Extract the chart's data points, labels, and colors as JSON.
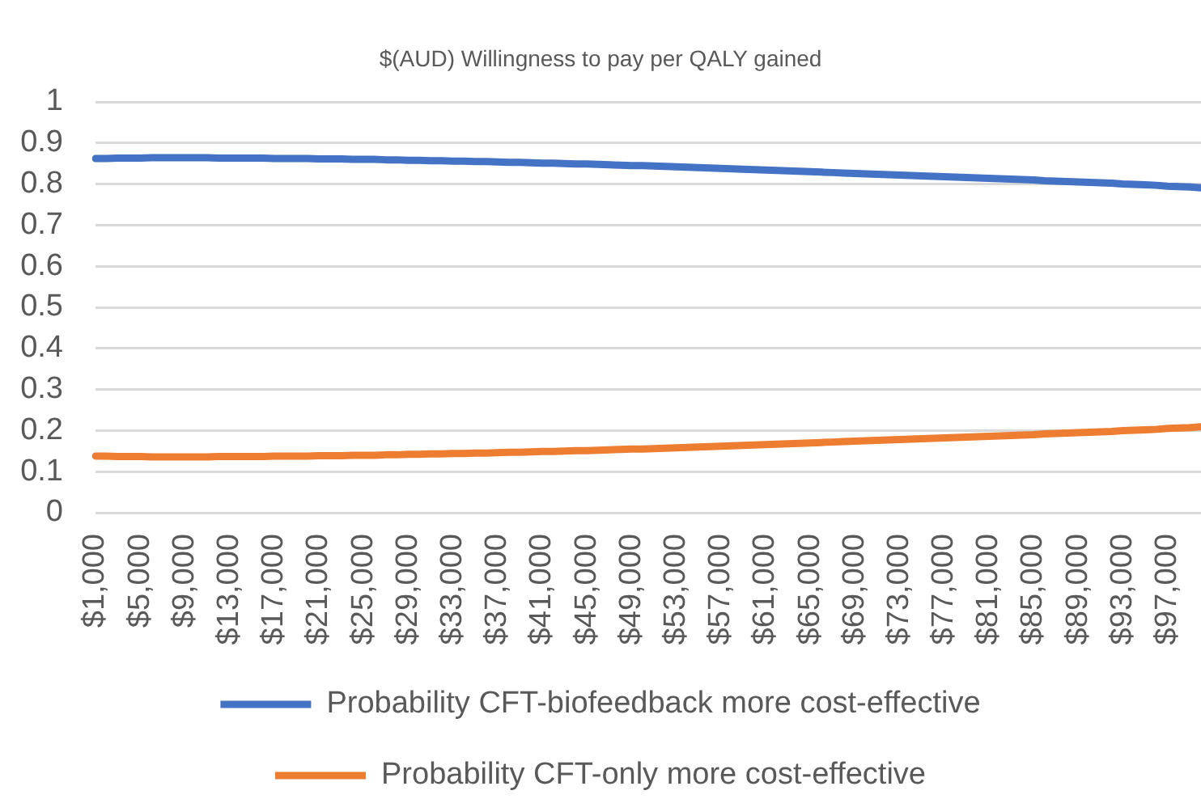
{
  "chart_data": {
    "type": "line",
    "title": "$(AUD) Willingness to pay per QALY gained",
    "categories": [
      "$1,000",
      null,
      null,
      null,
      "$5,000",
      null,
      null,
      null,
      "$9,000",
      null,
      null,
      null,
      "$13,000",
      null,
      null,
      null,
      "$17,000",
      null,
      null,
      null,
      "$21,000",
      null,
      null,
      null,
      "$25,000",
      null,
      null,
      null,
      "$29,000",
      null,
      null,
      null,
      "$33,000",
      null,
      null,
      null,
      "$37,000",
      null,
      null,
      null,
      "$41,000",
      null,
      null,
      null,
      "$45,000",
      null,
      null,
      null,
      "$49,000",
      null,
      null,
      null,
      "$53,000",
      null,
      null,
      null,
      "$57,000",
      null,
      null,
      null,
      "$61,000",
      null,
      null,
      null,
      "$65,000",
      null,
      null,
      null,
      "$69,000",
      null,
      null,
      null,
      "$73,000",
      null,
      null,
      null,
      "$77,000",
      null,
      null,
      null,
      "$81,000",
      null,
      null,
      null,
      "$85,000",
      null,
      null,
      null,
      "$89,000",
      null,
      null,
      null,
      "$93,000",
      null,
      null,
      null,
      "$97,000",
      null,
      null,
      null
    ],
    "series": [
      {
        "name": "Probability CFT-biofeedback more cost-effective",
        "color": "#4472c4",
        "values": [
          0.862,
          0.862,
          0.863,
          0.863,
          0.863,
          0.864,
          0.864,
          0.864,
          0.864,
          0.864,
          0.864,
          0.863,
          0.863,
          0.863,
          0.863,
          0.863,
          0.862,
          0.862,
          0.862,
          0.862,
          0.861,
          0.861,
          0.861,
          0.86,
          0.86,
          0.86,
          0.859,
          0.859,
          0.858,
          0.858,
          0.857,
          0.857,
          0.856,
          0.856,
          0.855,
          0.855,
          0.854,
          0.853,
          0.853,
          0.852,
          0.851,
          0.851,
          0.85,
          0.849,
          0.849,
          0.848,
          0.847,
          0.846,
          0.845,
          0.845,
          0.844,
          0.843,
          0.842,
          0.841,
          0.84,
          0.839,
          0.838,
          0.837,
          0.836,
          0.835,
          0.834,
          0.833,
          0.832,
          0.831,
          0.83,
          0.829,
          0.828,
          0.827,
          0.826,
          0.825,
          0.824,
          0.823,
          0.822,
          0.821,
          0.82,
          0.819,
          0.818,
          0.817,
          0.816,
          0.815,
          0.814,
          0.813,
          0.812,
          0.811,
          0.81,
          0.808,
          0.807,
          0.806,
          0.805,
          0.804,
          0.803,
          0.802,
          0.8,
          0.799,
          0.798,
          0.797,
          0.795,
          0.794,
          0.793,
          0.791
        ]
      },
      {
        "name": "Probability CFT-only more cost-effective",
        "color": "#ed7d31",
        "values": [
          0.138,
          0.138,
          0.137,
          0.137,
          0.137,
          0.136,
          0.136,
          0.136,
          0.136,
          0.136,
          0.136,
          0.137,
          0.137,
          0.137,
          0.137,
          0.137,
          0.138,
          0.138,
          0.138,
          0.138,
          0.139,
          0.139,
          0.139,
          0.14,
          0.14,
          0.14,
          0.141,
          0.141,
          0.142,
          0.142,
          0.143,
          0.143,
          0.144,
          0.144,
          0.145,
          0.145,
          0.146,
          0.147,
          0.147,
          0.148,
          0.149,
          0.149,
          0.15,
          0.151,
          0.151,
          0.152,
          0.153,
          0.154,
          0.155,
          0.155,
          0.156,
          0.157,
          0.158,
          0.159,
          0.16,
          0.161,
          0.162,
          0.163,
          0.164,
          0.165,
          0.166,
          0.167,
          0.168,
          0.169,
          0.17,
          0.171,
          0.172,
          0.173,
          0.174,
          0.175,
          0.176,
          0.177,
          0.178,
          0.179,
          0.18,
          0.181,
          0.182,
          0.183,
          0.184,
          0.185,
          0.186,
          0.187,
          0.188,
          0.189,
          0.19,
          0.192,
          0.193,
          0.194,
          0.195,
          0.196,
          0.197,
          0.198,
          0.2,
          0.201,
          0.202,
          0.203,
          0.205,
          0.206,
          0.207,
          0.209
        ]
      }
    ],
    "ylim": [
      0,
      1
    ],
    "yticks": [
      0,
      0.1,
      0.2,
      0.3,
      0.4,
      0.5,
      0.6,
      0.7,
      0.8,
      0.9,
      1
    ],
    "grid": "y",
    "legend": "bottom"
  }
}
